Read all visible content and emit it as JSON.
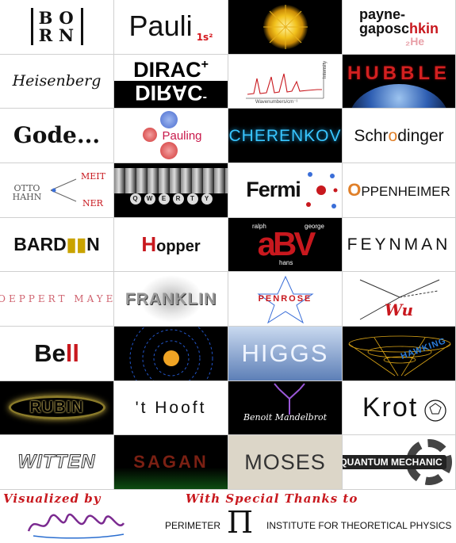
{
  "tiles": {
    "born": {
      "letters": [
        "B",
        "O",
        "R",
        "N"
      ]
    },
    "pauli": {
      "name": "Pauli",
      "superscript": "1s²"
    },
    "payne": {
      "line1": "payne-",
      "line2": "gaposc",
      "line3": "hkin",
      "helium": "₂He"
    },
    "heisenberg": {
      "name": "Heisenberg"
    },
    "dirac": {
      "name": "DIRAC",
      "plus": "+",
      "minus": "-"
    },
    "spectrum": {
      "xlabel": "Wavenumbers/cm⁻¹",
      "ylabel": "Intensity"
    },
    "hubble": {
      "name": "HUBBLE"
    },
    "godel": {
      "name": "Gode..."
    },
    "pauling": {
      "name": "Pauling"
    },
    "cherenkov": {
      "name": "CHERENKOV"
    },
    "schrodinger": {
      "pre": "Schr",
      "o": "o",
      "post": "dinger"
    },
    "otto_hahn": {
      "left": "OTTO HAHN",
      "right_top": "MEIT",
      "right_bottom": "NER"
    },
    "qwerty": {
      "keys": [
        "Q",
        "W",
        "E",
        "R",
        "T",
        "Y"
      ]
    },
    "fermi": {
      "name": "Fermi"
    },
    "oppenheimer": {
      "o": "O",
      "rest": "PPENHEIMER"
    },
    "bardeen": {
      "bard": "BARD",
      "n": "N"
    },
    "hopper": {
      "h": "H",
      "rest": "opper"
    },
    "abv": {
      "letters": "aBV",
      "names": [
        "ralph",
        "george",
        "hans"
      ]
    },
    "feynman": {
      "name": "FEYNMAN"
    },
    "goeppert_mayer": {
      "name": "GOEPPERT MAYER"
    },
    "franklin": {
      "name": "FRANKLIN"
    },
    "penrose": {
      "name": "PENROSE"
    },
    "wu": {
      "name": "Wu"
    },
    "bell": {
      "be": "Be",
      "l": "ll"
    },
    "higgs": {
      "name": "HIGGS"
    },
    "hawking": {
      "name": "HAWKING"
    },
    "rubin": {
      "name": "RUBIN"
    },
    "thooft": {
      "name": "'t Hooft"
    },
    "mandelbrot": {
      "name": "Benoit Mandelbrot"
    },
    "kroto": {
      "name": "Krot"
    },
    "witten": {
      "name": "WITTEN"
    },
    "sagan": {
      "name": "SAGAN"
    },
    "moses": {
      "name": "MOSES"
    },
    "quantum": {
      "name": "QUANTUM MECHANIC"
    }
  },
  "footer": {
    "visualized_by": "Visualized by",
    "special_thanks": "With Special Thanks to",
    "perimeter": "PERIMETER",
    "pi": "PI",
    "institute": "INSTITUTE FOR THEORETICAL PHYSICS"
  },
  "colors": {
    "accent_red": "#c8181e",
    "cherenkov_blue": "#39c6ff",
    "orange": "#e0802a"
  }
}
